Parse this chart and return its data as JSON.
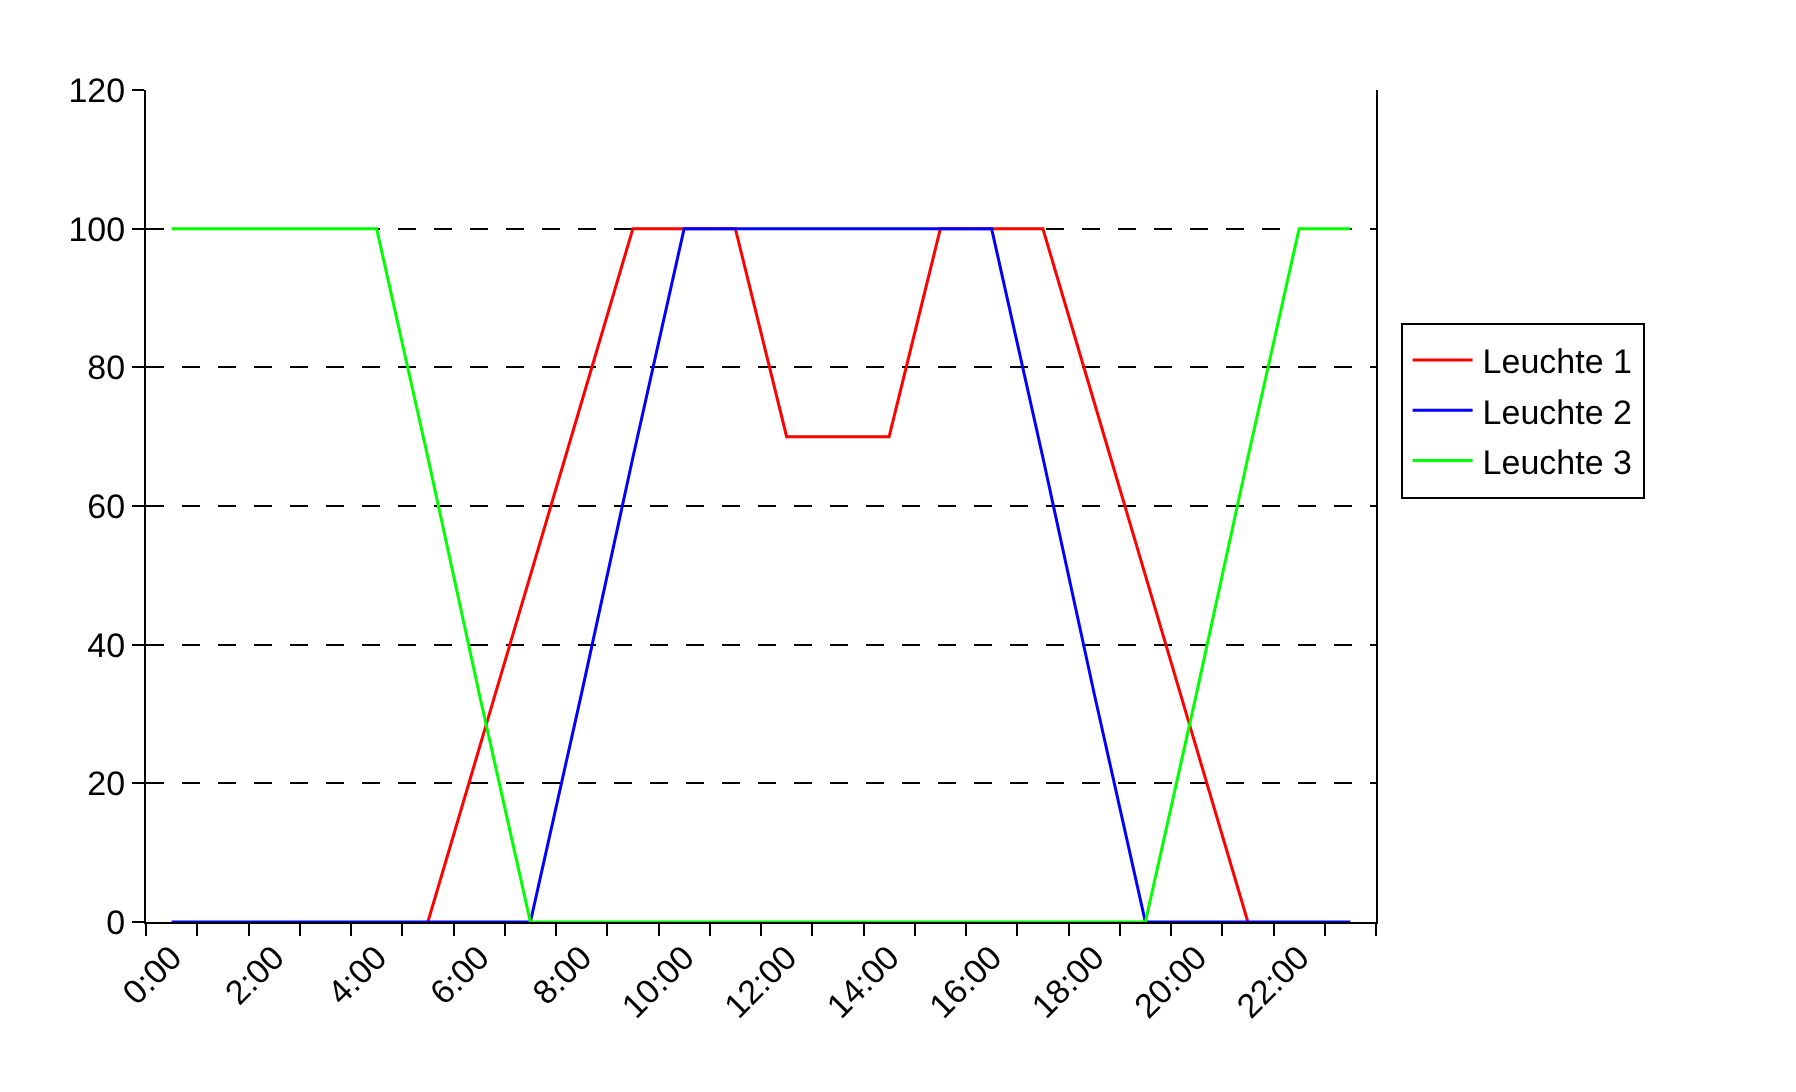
{
  "chart_data": {
    "type": "line",
    "categories": [
      "0:00",
      null,
      "2:00",
      null,
      "4:00",
      null,
      "6:00",
      null,
      "8:00",
      null,
      "10:00",
      null,
      "12:00",
      null,
      "14:00",
      null,
      "16:00",
      null,
      "18:00",
      null,
      "20:00",
      null,
      "22:00",
      null
    ],
    "series": [
      {
        "name": "Leuchte 1",
        "color": "#ff0000",
        "values": [
          null,
          null,
          null,
          null,
          null,
          0,
          25,
          50,
          75,
          100,
          100,
          100,
          70,
          70,
          70,
          100,
          100,
          100,
          75,
          50,
          25,
          0,
          null,
          null
        ]
      },
      {
        "name": "Leuchte 2",
        "color": "#0000ff",
        "values": [
          0,
          0,
          0,
          0,
          0,
          0,
          0,
          0,
          33,
          67,
          100,
          100,
          100,
          100,
          100,
          100,
          100,
          67,
          33,
          0,
          0,
          0,
          0,
          0
        ]
      },
      {
        "name": "Leuchte 3",
        "color": "#00ff00",
        "values": [
          100,
          100,
          100,
          100,
          100,
          67,
          33,
          0,
          0,
          0,
          0,
          0,
          0,
          0,
          0,
          0,
          0,
          0,
          0,
          0,
          33,
          67,
          100,
          100
        ]
      }
    ],
    "ylim": [
      0,
      120
    ],
    "yticks": [
      0,
      20,
      40,
      60,
      80,
      100,
      120
    ],
    "grid": "y",
    "legend": "right",
    "marker": "none",
    "line_style": "solid"
  }
}
